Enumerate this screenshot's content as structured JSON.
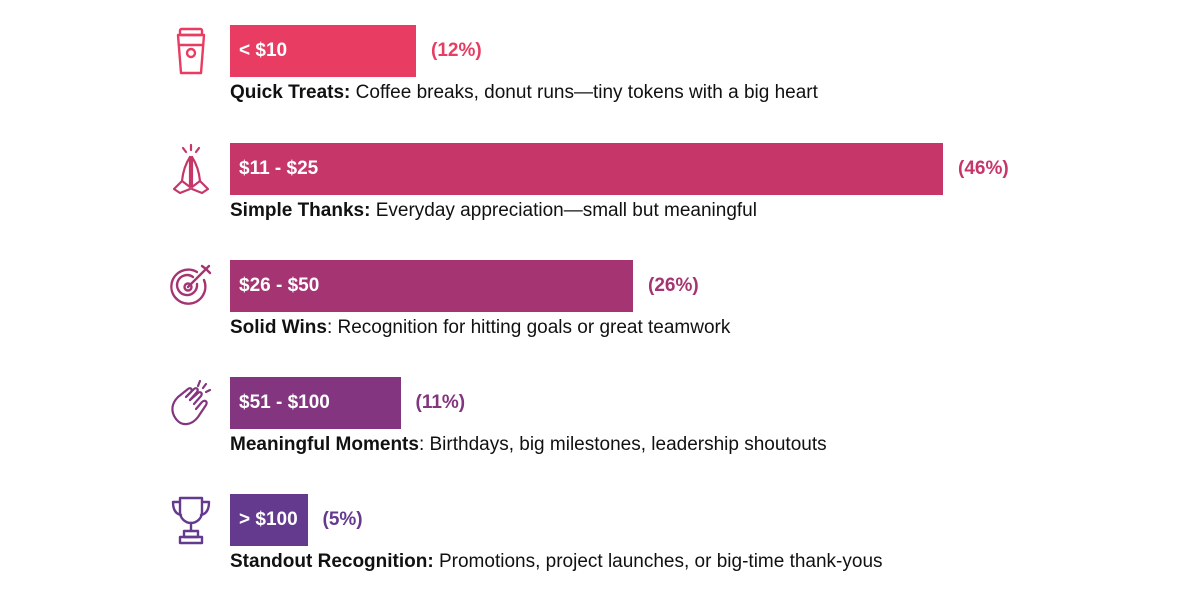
{
  "chart_data": {
    "type": "bar",
    "orientation": "horizontal",
    "categories": [
      "< $10",
      "$11 - $25",
      "$26 - $50",
      "$51 - $100",
      "> $100"
    ],
    "values": [
      12,
      46,
      26,
      11,
      5
    ],
    "value_labels": [
      "(12%)",
      "(46%)",
      "(26%)",
      "(11%)",
      "(5%)"
    ],
    "unit": "%",
    "colors": [
      "#e83c62",
      "#c73668",
      "#a53572",
      "#83367f",
      "#643a8f"
    ],
    "icons": [
      "coffee-cup-icon",
      "praying-hands-icon",
      "target-icon",
      "clapping-hands-icon",
      "trophy-icon"
    ],
    "descriptions": [
      {
        "title": "Quick Treats:",
        "text": " Coffee breaks, donut runs—tiny tokens with a big heart"
      },
      {
        "title": "Simple Thanks:",
        "text": " Everyday appreciation—small but meaningful"
      },
      {
        "title": "Solid Wins",
        "text": ": Recognition for hitting goals or great teamwork"
      },
      {
        "title": "Meaningful Moments",
        "text": ": Birthdays, big milestones, leadership shoutouts"
      },
      {
        "title": "Standout Recognition:",
        "text": " Promotions, project launches, or big-time thank-yous"
      }
    ],
    "grid": false
  }
}
